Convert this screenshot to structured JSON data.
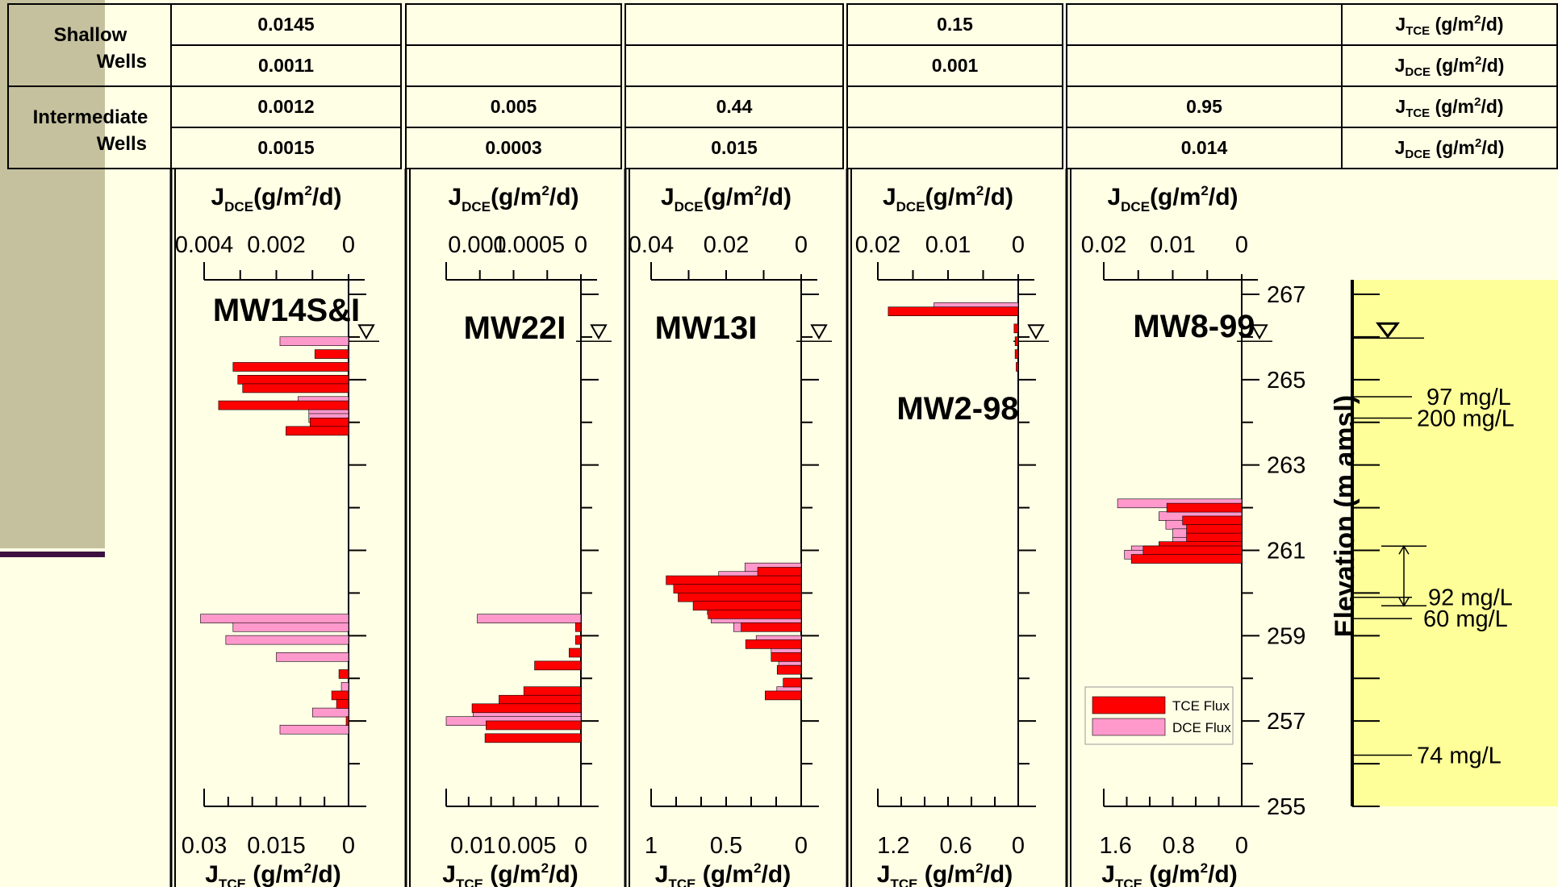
{
  "table": {
    "rows": [
      {
        "group_line1": "Shallow",
        "group_line2": "Wells",
        "unit_main": "J",
        "unit_sub": "TCE",
        "unit_rest": " (g/m",
        "unit_sup": "2",
        "unit_end": "/d)",
        "cells": [
          "0.0145",
          "",
          "",
          "0.15",
          ""
        ]
      },
      {
        "group_line1": "",
        "group_line2": "",
        "unit_main": "J",
        "unit_sub": "DCE",
        "unit_rest": " (g/m",
        "unit_sup": "2",
        "unit_end": "/d)",
        "cells": [
          "0.0011",
          "",
          "",
          "0.001",
          ""
        ]
      },
      {
        "group_line1": "Intermediate",
        "group_line2": "Wells",
        "unit_main": "J",
        "unit_sub": "TCE",
        "unit_rest": " (g/m",
        "unit_sup": "2",
        "unit_end": "/d)",
        "cells": [
          "0.0012",
          "0.005",
          "0.44",
          "",
          "0.95"
        ]
      },
      {
        "group_line1": "",
        "group_line2": "",
        "unit_main": "J",
        "unit_sub": "DCE",
        "unit_rest": " (g/m",
        "unit_sup": "2",
        "unit_end": "/d)",
        "cells": [
          "0.0015",
          "0.0003",
          "0.015",
          "",
          "0.014"
        ]
      }
    ]
  },
  "axis_titles": {
    "dce_main": "J",
    "dce_sub": "DCE",
    "dce_rest": "(g/m",
    "dce_sup": "2",
    "dce_end": "/d)",
    "tce_main": "J",
    "tce_sub": "TCE",
    "tce_rest": " (g/m",
    "tce_sup": "2",
    "tce_end": "/d)"
  },
  "chart_data": {
    "type": "bar",
    "orientation": "horizontal",
    "y_axis": {
      "label": "Elevation (m amsl)",
      "range": [
        255,
        267
      ],
      "ticks": [
        255,
        257,
        259,
        261,
        263,
        265,
        267
      ]
    },
    "water_table_elevation": 265.9,
    "legend": {
      "position": "bottom-right of MW8-99 panel",
      "entries": [
        {
          "name": "TCE Flux",
          "color": "#ff0000"
        },
        {
          "name": "DCE Flux",
          "color": "#ff99cc"
        }
      ]
    },
    "concentration_labels": [
      {
        "elevation": 264.6,
        "text": "97 mg/L"
      },
      {
        "elevation": 264.1,
        "text": "200 mg/L"
      },
      {
        "elevation": 259.9,
        "text": "92 mg/L"
      },
      {
        "elevation": 259.4,
        "text": "60 mg/L"
      },
      {
        "elevation": 256.2,
        "text": "74 mg/L"
      }
    ],
    "panels": [
      {
        "well": "MW14S&I",
        "tce_max": 0.03,
        "tce_ticks": [
          0.03,
          0.015,
          0
        ],
        "tce_ticklabels": [
          "0.03",
          "0.015",
          "0"
        ],
        "dce_max": 0.004,
        "dce_ticks": [
          0.004,
          0.002,
          0
        ],
        "dce_ticklabels": [
          "0.004",
          "0.002",
          "0"
        ],
        "dce": [
          [
            265.9,
            0.0019
          ],
          [
            264.9,
            0.0011
          ],
          [
            264.5,
            0.0014
          ],
          [
            264.3,
            0.0011
          ],
          [
            264.1,
            0.0011
          ],
          [
            263.9,
            0.0006
          ],
          [
            259.4,
            0.0041
          ],
          [
            259.2,
            0.0032
          ],
          [
            258.9,
            0.0034
          ],
          [
            258.5,
            0.002
          ],
          [
            257.8,
            0.0002
          ],
          [
            257.2,
            0.001
          ],
          [
            256.8,
            0.0019
          ]
        ],
        "tce": [
          [
            265.6,
            0.007
          ],
          [
            265.3,
            0.024
          ],
          [
            265.0,
            0.023
          ],
          [
            264.8,
            0.022
          ],
          [
            264.4,
            0.027
          ],
          [
            264.0,
            0.008
          ],
          [
            263.8,
            0.013
          ],
          [
            258.1,
            0.002
          ],
          [
            257.6,
            0.0035
          ],
          [
            257.4,
            0.0025
          ],
          [
            257.0,
            0.0005
          ]
        ]
      },
      {
        "well": "MW22I",
        "tce_max": 0.0125,
        "tce_ticks": [
          0.01,
          0.005,
          0
        ],
        "tce_ticklabels": [
          "0.01",
          "0.005",
          "0"
        ],
        "dce_max": 0.0013,
        "dce_ticks": [
          0.001,
          0.0005,
          0
        ],
        "dce_ticklabels": [
          "0.001",
          "0.0005",
          "0"
        ],
        "dce": [
          [
            259.4,
            0.001
          ],
          [
            257.2,
            0.00104
          ],
          [
            257.0,
            0.0013
          ]
        ],
        "tce": [
          [
            259.2,
            0.0005
          ],
          [
            258.9,
            0.0005
          ],
          [
            258.6,
            0.0011
          ],
          [
            258.3,
            0.0043
          ],
          [
            257.7,
            0.0053
          ],
          [
            257.5,
            0.0076
          ],
          [
            257.3,
            0.0101
          ],
          [
            256.9,
            0.0088
          ],
          [
            256.6,
            0.0089
          ]
        ]
      },
      {
        "well": "MW13I",
        "tce_max": 1.0,
        "tce_ticks": [
          1,
          0.5,
          0
        ],
        "tce_ticklabels": [
          "1",
          "0.5",
          "0"
        ],
        "dce_max": 0.04,
        "dce_ticks": [
          0.04,
          0.02,
          0
        ],
        "dce_ticklabels": [
          "0.04",
          "0.02",
          "0"
        ],
        "dce": [
          [
            260.6,
            0.015
          ],
          [
            260.4,
            0.022
          ],
          [
            260.2,
            0.03
          ],
          [
            260.0,
            0.031
          ],
          [
            259.8,
            0.028
          ],
          [
            259.6,
            0.025
          ],
          [
            259.4,
            0.024
          ],
          [
            259.2,
            0.018
          ],
          [
            258.9,
            0.012
          ],
          [
            258.7,
            0.008
          ],
          [
            258.4,
            0.006
          ],
          [
            258.2,
            0.005
          ],
          [
            257.9,
            0.0045
          ],
          [
            257.7,
            0.0065
          ]
        ],
        "tce": [
          [
            260.5,
            0.29
          ],
          [
            260.3,
            0.9
          ],
          [
            260.1,
            0.85
          ],
          [
            259.9,
            0.82
          ],
          [
            259.7,
            0.72
          ],
          [
            259.5,
            0.62
          ],
          [
            259.2,
            0.4
          ],
          [
            258.8,
            0.37
          ],
          [
            258.5,
            0.2
          ],
          [
            258.2,
            0.16
          ],
          [
            257.9,
            0.12
          ],
          [
            257.6,
            0.24
          ]
        ]
      },
      {
        "well": "MW2-98",
        "tce_max": 1.35,
        "tce_ticks": [
          1.2,
          0.6,
          0
        ],
        "tce_ticklabels": [
          "1.2",
          "0.6",
          "0"
        ],
        "dce_max": 0.02,
        "dce_ticks": [
          0.02,
          0.01,
          0
        ],
        "dce_ticklabels": [
          "0.02",
          "0.01",
          "0"
        ],
        "dce": [
          [
            266.7,
            0.012
          ]
        ],
        "tce": [
          [
            266.6,
            1.25
          ],
          [
            266.2,
            0.04
          ],
          [
            265.9,
            0.03
          ],
          [
            265.6,
            0.03
          ],
          [
            265.3,
            0.02
          ]
        ]
      },
      {
        "well": "MW8-99",
        "tce_max": 1.75,
        "tce_ticks": [
          1.6,
          0.8,
          0
        ],
        "tce_ticklabels": [
          "1.6",
          "0.8",
          "0"
        ],
        "dce_max": 0.02,
        "dce_ticks": [
          0.02,
          0.01,
          0
        ],
        "dce_ticklabels": [
          "0.02",
          "0.01",
          "0"
        ],
        "dce": [
          [
            262.1,
            0.018
          ],
          [
            261.8,
            0.012
          ],
          [
            261.6,
            0.011
          ],
          [
            261.4,
            0.01
          ],
          [
            261.2,
            0.01
          ],
          [
            261.0,
            0.016
          ],
          [
            260.9,
            0.017
          ]
        ],
        "tce": [
          [
            262.0,
            0.95
          ],
          [
            261.7,
            0.75
          ],
          [
            261.5,
            0.7
          ],
          [
            261.3,
            0.7
          ],
          [
            261.1,
            1.05
          ],
          [
            261.0,
            1.25
          ],
          [
            260.8,
            1.4
          ]
        ]
      }
    ]
  }
}
